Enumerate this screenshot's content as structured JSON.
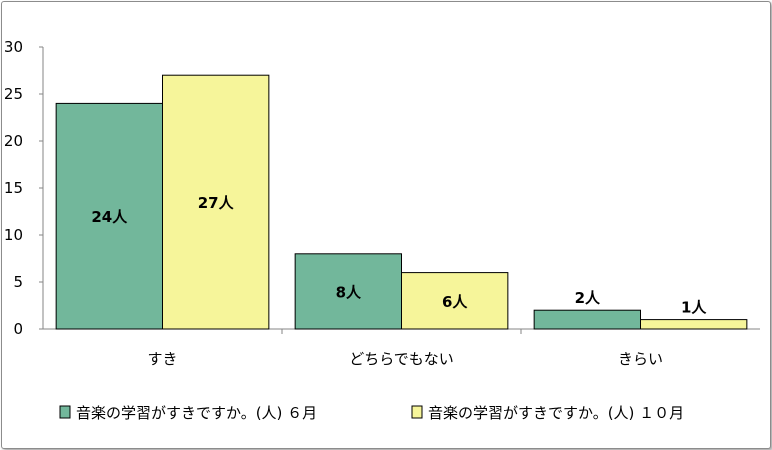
{
  "chart_data": {
    "type": "bar",
    "categories": [
      "すき",
      "どちらでもない",
      "きらい"
    ],
    "series": [
      {
        "name": "音楽の学習がすきですか。(人) ６月",
        "values": [
          24,
          8,
          2
        ],
        "labels": [
          "24人",
          "8人",
          "2人"
        ],
        "color": "#72b79b"
      },
      {
        "name": "音楽の学習がすきですか。(人) １０月",
        "values": [
          27,
          6,
          1
        ],
        "labels": [
          "27人",
          "6人",
          "1人"
        ],
        "color": "#f6f59a"
      }
    ],
    "yticks": [
      0,
      5,
      10,
      15,
      20,
      25,
      30
    ],
    "ylim": [
      0,
      30
    ],
    "title": "",
    "xlabel": "",
    "ylabel": "",
    "legend_position": "bottom",
    "grid": false
  }
}
